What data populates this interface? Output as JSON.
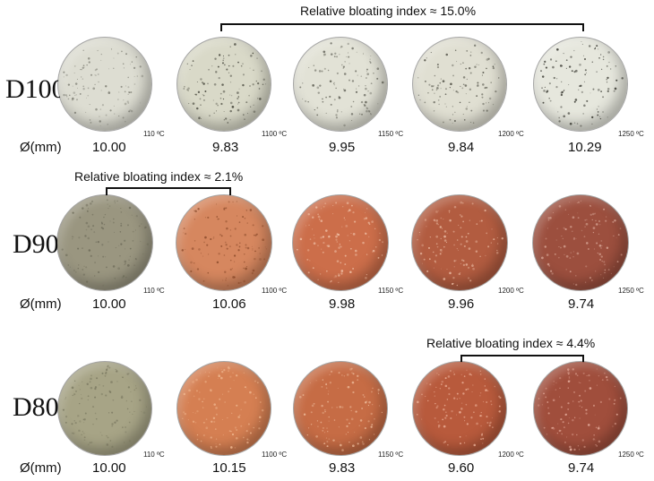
{
  "diameter_prefix": "Ø(mm)",
  "rows": [
    {
      "label": "D100",
      "bloating": "Relative bloating index ≈ 15.0%",
      "samples": [
        {
          "temp": "110 ºC",
          "diameter": "10.00",
          "color": "#ddddd2",
          "speck": "#7a7a70"
        },
        {
          "temp": "1100 ºC",
          "diameter": "9.83",
          "color": "#d9d9c8",
          "speck": "#3a3a30"
        },
        {
          "temp": "1150 ºC",
          "diameter": "9.95",
          "color": "#e2e2d6",
          "speck": "#5a5a50"
        },
        {
          "temp": "1200 ºC",
          "diameter": "9.84",
          "color": "#e0dfd2",
          "speck": "#4a4a40"
        },
        {
          "temp": "1250 ºC",
          "diameter": "10.29",
          "color": "#e6e7dd",
          "speck": "#2f2f28"
        }
      ]
    },
    {
      "label": "D90",
      "bloating": "Relative bloating index ≈ 2.1%",
      "samples": [
        {
          "temp": "110 ºC",
          "diameter": "10.00",
          "color": "#9a9680",
          "speck": "#6c6a58"
        },
        {
          "temp": "1100 ºC",
          "diameter": "10.06",
          "color": "#d6875f",
          "speck": "#8a4a2a"
        },
        {
          "temp": "1150 ºC",
          "diameter": "9.98",
          "color": "#cc6e4a",
          "speck": "#f0c2a8"
        },
        {
          "temp": "1200 ºC",
          "diameter": "9.96",
          "color": "#b25c40",
          "speck": "#e8b8a0"
        },
        {
          "temp": "1250 ºC",
          "diameter": "9.74",
          "color": "#9c4f3e",
          "speck": "#d9a898"
        }
      ]
    },
    {
      "label": "D80",
      "bloating": "Relative bloating index  ≈ 4.4%",
      "samples": [
        {
          "temp": "110 ºC",
          "diameter": "10.00",
          "color": "#a7a486",
          "speck": "#7a7860"
        },
        {
          "temp": "1100 ºC",
          "diameter": "10.15",
          "color": "#d57f52",
          "speck": "#f0b890"
        },
        {
          "temp": "1150 ºC",
          "diameter": "9.83",
          "color": "#c66c45",
          "speck": "#f0c0a0"
        },
        {
          "temp": "1200 ºC",
          "diameter": "9.60",
          "color": "#b85a3c",
          "speck": "#f0b8a0"
        },
        {
          "temp": "1250 ºC",
          "diameter": "9.74",
          "color": "#a04e3c",
          "speck": "#e8b0a0"
        }
      ]
    }
  ]
}
